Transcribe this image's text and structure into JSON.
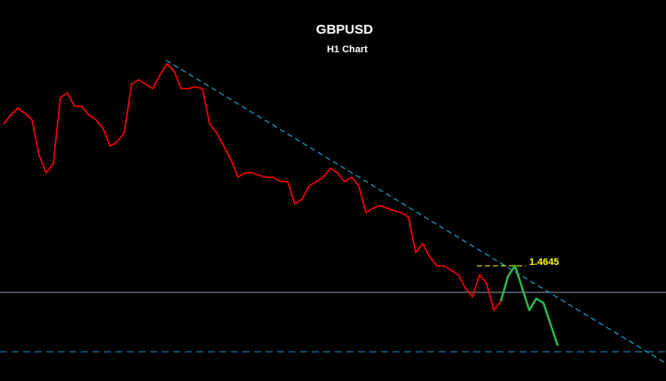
{
  "chart_data": {
    "type": "line",
    "title": "GBPUSD",
    "subtitle": "H1 Chart",
    "categories": [
      null,
      null,
      null,
      null,
      null,
      null,
      null,
      null,
      null,
      null,
      null,
      null,
      null,
      null,
      null,
      null,
      null,
      null,
      null,
      null,
      null,
      null,
      null,
      null,
      null,
      null,
      null,
      null,
      null,
      null,
      null,
      null,
      null,
      null,
      null,
      null,
      null,
      null,
      null,
      null,
      null,
      null,
      null,
      null,
      null,
      null,
      null,
      null,
      null,
      null,
      null,
      null,
      null,
      null,
      null,
      null,
      null,
      null,
      null,
      null,
      null,
      null,
      null,
      null,
      null,
      null,
      null,
      null,
      null,
      null,
      null,
      null,
      null,
      null,
      null,
      null,
      null,
      null,
      null
    ],
    "series": [
      {
        "color": "#ff0000",
        "values": [
          1.4805,
          1.4815,
          1.4823,
          1.4817,
          1.481,
          1.477,
          1.475,
          1.476,
          1.4835,
          1.484,
          1.4825,
          1.4825,
          1.4815,
          1.481,
          1.48,
          1.478,
          1.4785,
          1.4795,
          1.485,
          1.4855,
          1.485,
          1.4845,
          1.486,
          1.4873,
          1.4865,
          1.4845,
          1.4845,
          1.4847,
          1.4845,
          1.4805,
          1.4795,
          1.478,
          1.4765,
          1.4745,
          1.475,
          1.475,
          1.4747,
          1.4745,
          1.4745,
          1.474,
          1.474,
          1.4715,
          1.472,
          1.4735,
          1.474,
          1.4745,
          1.4755,
          1.475,
          1.474,
          1.4745,
          1.4735,
          1.4705,
          1.471,
          1.4713,
          1.471,
          1.4707,
          1.4705,
          1.47,
          1.466,
          1.467,
          1.4655,
          1.4645,
          1.4645,
          1.464,
          1.4635,
          1.462,
          1.461,
          1.4635,
          1.4625,
          1.4595,
          1.4605,
          null,
          null,
          null,
          null,
          null,
          null,
          null,
          null
        ]
      },
      {
        "color": "#2db84a",
        "values": [
          null,
          null,
          null,
          null,
          null,
          null,
          null,
          null,
          null,
          null,
          null,
          null,
          null,
          null,
          null,
          null,
          null,
          null,
          null,
          null,
          null,
          null,
          null,
          null,
          null,
          null,
          null,
          null,
          null,
          null,
          null,
          null,
          null,
          null,
          null,
          null,
          null,
          null,
          null,
          null,
          null,
          null,
          null,
          null,
          null,
          null,
          null,
          null,
          null,
          null,
          null,
          null,
          null,
          null,
          null,
          null,
          null,
          null,
          null,
          null,
          null,
          null,
          null,
          null,
          null,
          null,
          null,
          null,
          null,
          null,
          1.4605,
          1.4633,
          1.4645,
          1.462,
          1.4595,
          1.4608,
          1.4603,
          1.4579,
          1.4555
        ]
      }
    ],
    "resistance": 1.4645,
    "resistance_color": "#ffff00",
    "support_levels": [
      {
        "value": 1.4615,
        "color": "#8a9bb0",
        "dashed": false
      },
      {
        "value": 1.4548,
        "color": "#1e90c8",
        "dashed": true
      }
    ],
    "trendline": {
      "values": [
        1.4877,
        1.4535
      ],
      "color": "#1ea0c8"
    },
    "ylim": [
      1.4515,
      1.4945
    ]
  }
}
